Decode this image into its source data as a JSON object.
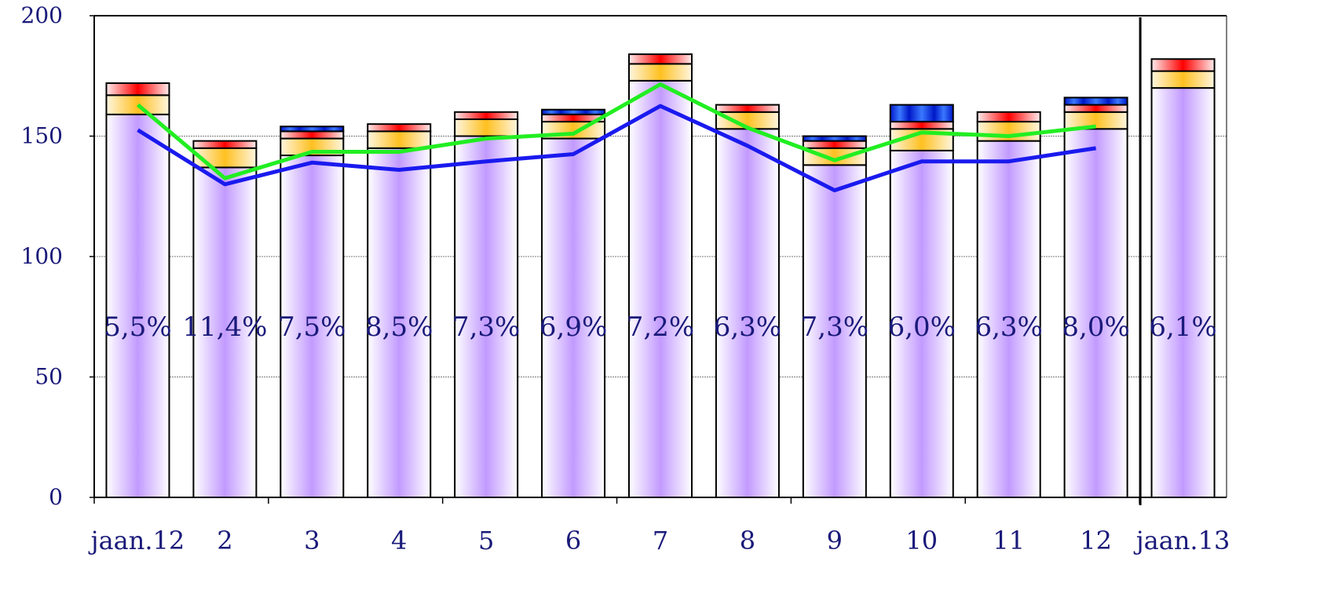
{
  "chart_data": {
    "type": "bar",
    "stacked": true,
    "categories": [
      "jaan.12",
      "2",
      "3",
      "4",
      "5",
      "6",
      "7",
      "8",
      "9",
      "10",
      "11",
      "12",
      "jaan.13"
    ],
    "ylim": [
      0,
      200
    ],
    "yticks": [
      0,
      50,
      100,
      150,
      200
    ],
    "grid": true,
    "series": [
      {
        "values": [
          159,
          137,
          142,
          145,
          150,
          149,
          173,
          153,
          138,
          144,
          148,
          153,
          170
        ],
        "color": "#c9a0ff"
      },
      {
        "values": [
          8,
          8,
          7,
          7,
          7,
          7,
          7,
          7,
          7,
          9,
          8,
          7,
          7
        ],
        "color": "#ffc830"
      },
      {
        "values": [
          5,
          3,
          3,
          3,
          3,
          3,
          4,
          3,
          3,
          3,
          4,
          3,
          5
        ],
        "color": "#ff2020"
      },
      {
        "values": [
          0,
          0,
          2,
          0,
          0,
          2,
          0,
          0,
          2,
          7,
          0,
          3,
          0
        ],
        "color": "#0030ff"
      }
    ],
    "lines": [
      {
        "values": [
          152.5,
          130,
          139,
          136,
          139.5,
          142.5,
          162.5,
          146,
          127.5,
          139.5,
          139.5,
          145,
          null
        ],
        "color": "#1a1aee"
      },
      {
        "values": [
          163,
          132.5,
          143.5,
          143.5,
          149,
          151,
          171.5,
          153.5,
          140,
          151.5,
          150,
          154,
          null
        ],
        "color": "#22ee22"
      }
    ],
    "bar_labels": [
      "5,5%",
      "11,4%",
      "7,5%",
      "8,5%",
      "7,3%",
      "6,9%",
      "7,2%",
      "6,3%",
      "7,3%",
      "6,0%",
      "6,3%",
      "8,0%",
      "6,1%"
    ],
    "separator_after_index": 11
  },
  "colors": {
    "axis_text": "#1a1a7a",
    "outline": "#000000",
    "grid": "#7a7a7a"
  }
}
